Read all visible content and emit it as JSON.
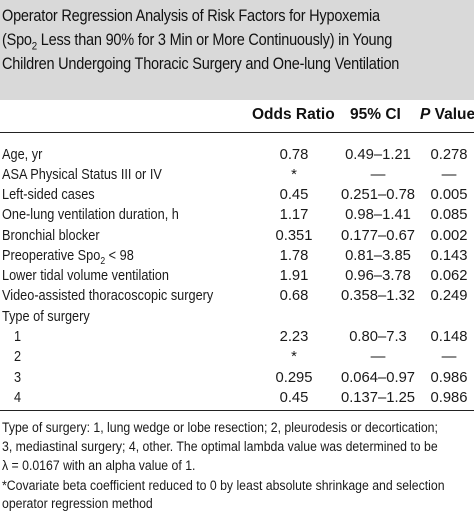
{
  "title": {
    "line1": "Operator Regression Analysis of Risk Factors for Hypoxemia",
    "line2_pre": "(Spo",
    "line2_sub": "2",
    "line2_post": " Less than 90% for 3 Min or More Continuously) in Young",
    "line3": "Children Undergoing Thoracic Surgery and One-lung Ventilation"
  },
  "columns": {
    "odds_ratio": "Odds Ratio",
    "ci": "95% CI",
    "p_italic": "P",
    "p_rest": " Value"
  },
  "rows": [
    {
      "label": "Age, yr",
      "or": "0.78",
      "ci": "0.49–1.21",
      "p": "0.278"
    },
    {
      "label": "ASA Physical Status III or IV",
      "or": "*",
      "ci": "—",
      "p": "—"
    },
    {
      "label": "Left-sided cases",
      "or": "0.45",
      "ci": "0.251–0.78",
      "p": "0.005"
    },
    {
      "label": "One-lung ventilation duration, h",
      "or": "1.17",
      "ci": "0.98–1.41",
      "p": "0.085"
    },
    {
      "label": "Bronchial blocker",
      "or": "0.351",
      "ci": "0.177–0.67",
      "p": "0.002"
    },
    {
      "label": "Preoperative Spo",
      "label_sub": "2",
      "label_post": " < 98",
      "or": "1.78",
      "ci": "0.81–3.85",
      "p": "0.143"
    },
    {
      "label": "Lower tidal volume ventilation",
      "or": "1.91",
      "ci": "0.96–3.78",
      "p": "0.062"
    },
    {
      "label": "Video-assisted thoracoscopic surgery",
      "or": "0.68",
      "ci": "0.358–1.32",
      "p": "0.249"
    },
    {
      "label": "Type of surgery",
      "or": "",
      "ci": "",
      "p": ""
    },
    {
      "label": "1",
      "or": "2.23",
      "ci": "0.80–7.3",
      "p": "0.148"
    },
    {
      "label": "2",
      "or": "*",
      "ci": "—",
      "p": "—"
    },
    {
      "label": "3",
      "or": "0.295",
      "ci": "0.064–0.97",
      "p": "0.986"
    },
    {
      "label": "4",
      "or": "0.45",
      "ci": "0.137–1.25",
      "p": "0.986"
    }
  ],
  "footnotes": {
    "line1": "Type of surgery: 1, lung wedge or lobe resection; 2, pleurodesis or decortication;",
    "line2": "3, mediastinal surgery; 4, other. The optimal lambda value was determined to be",
    "line3": "λ = 0.0167 with an alpha value of 1.",
    "line4": "*Covariate beta coefficient reduced to 0 by least absolute shrinkage and selection",
    "line5": "operator regression method"
  }
}
